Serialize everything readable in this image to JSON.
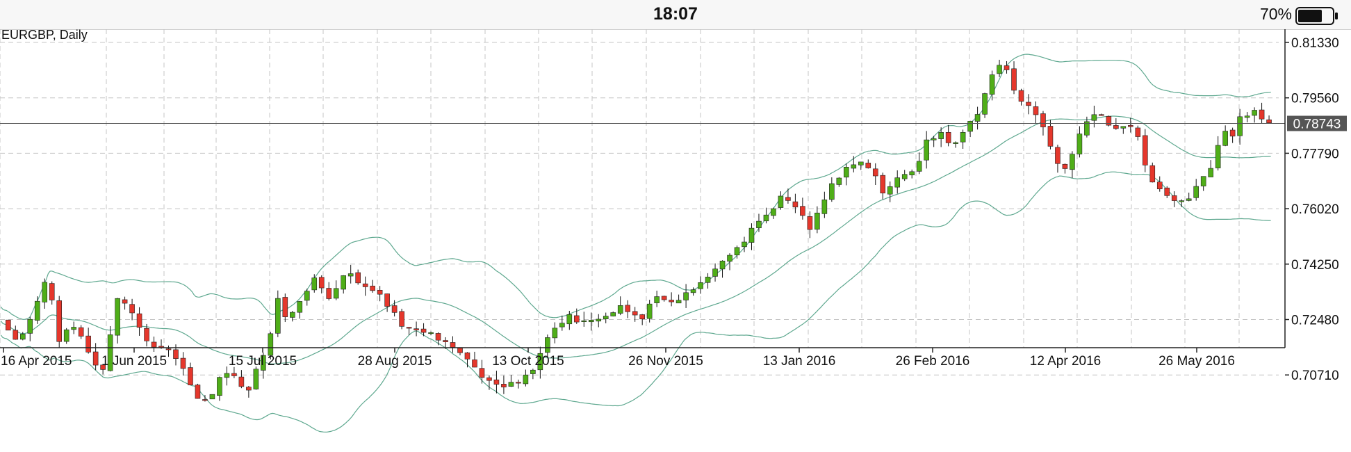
{
  "status_bar": {
    "time": "18:07",
    "battery_percent": "70%",
    "battery_level": 0.7
  },
  "chart_data": {
    "type": "candlestick",
    "title": "EURGBP, Daily",
    "y_ticks": [
      "0.81330",
      "0.79560",
      "0.77790",
      "0.76020",
      "0.74250",
      "0.72480",
      "0.70710"
    ],
    "ylim": [
      0.696,
      0.816
    ],
    "x_ticks": [
      "16 Apr 2015",
      "1 Jun 2015",
      "15 Jul 2015",
      "28 Aug 2015",
      "13 Oct 2015",
      "26 Nov 2015",
      "13 Jan 2016",
      "26 Feb 2016",
      "12 Apr 2016",
      "26 May 2016"
    ],
    "current_price": "0.78743",
    "current_price_value": 0.78743,
    "grid": true,
    "indicators": [
      "Bollinger Bands"
    ],
    "colors": {
      "bull": "#4fae18",
      "bear": "#e5372c",
      "bands": "#5ea88f",
      "grid": "#c4c4c4",
      "price_line": "#555555",
      "price_label_bg": "#555555"
    },
    "close_path": [
      [
        0,
        0.724
      ],
      [
        10,
        0.7165
      ],
      [
        21,
        0.733
      ],
      [
        26,
        0.74
      ],
      [
        31,
        0.718
      ],
      [
        41,
        0.723
      ],
      [
        46,
        0.717
      ],
      [
        51,
        0.71
      ],
      [
        56,
        0.709
      ],
      [
        64,
        0.732
      ],
      [
        73,
        0.726
      ],
      [
        78,
        0.72
      ],
      [
        83,
        0.715
      ],
      [
        93,
        0.716
      ],
      [
        103,
        0.706
      ],
      [
        108,
        0.7
      ],
      [
        115,
        0.699
      ],
      [
        122,
        0.709
      ],
      [
        129,
        0.706
      ],
      [
        135,
        0.7
      ],
      [
        142,
        0.713
      ],
      [
        147,
        0.716
      ],
      [
        151,
        0.733
      ],
      [
        156,
        0.726
      ],
      [
        164,
        0.73
      ],
      [
        172,
        0.739
      ],
      [
        180,
        0.732
      ],
      [
        190,
        0.74
      ],
      [
        197,
        0.736
      ],
      [
        210,
        0.732
      ],
      [
        216,
        0.726
      ],
      [
        222,
        0.722
      ],
      [
        235,
        0.72
      ],
      [
        250,
        0.716
      ],
      [
        257,
        0.711
      ],
      [
        263,
        0.707
      ],
      [
        270,
        0.706
      ],
      [
        275,
        0.703
      ],
      [
        284,
        0.705
      ],
      [
        292,
        0.708
      ],
      [
        297,
        0.715
      ],
      [
        305,
        0.723
      ],
      [
        313,
        0.726
      ],
      [
        321,
        0.723
      ],
      [
        332,
        0.725
      ],
      [
        339,
        0.73
      ],
      [
        344,
        0.727
      ],
      [
        352,
        0.726
      ],
      [
        359,
        0.732
      ],
      [
        372,
        0.731
      ],
      [
        380,
        0.735
      ],
      [
        389,
        0.74
      ],
      [
        397,
        0.743
      ],
      [
        406,
        0.748
      ],
      [
        413,
        0.755
      ],
      [
        421,
        0.758
      ],
      [
        427,
        0.764
      ],
      [
        436,
        0.76
      ],
      [
        440,
        0.757
      ],
      [
        444,
        0.754
      ],
      [
        450,
        0.762
      ],
      [
        459,
        0.77
      ],
      [
        464,
        0.773
      ],
      [
        474,
        0.775
      ],
      [
        480,
        0.77
      ],
      [
        484,
        0.765
      ],
      [
        490,
        0.77
      ],
      [
        501,
        0.772
      ],
      [
        508,
        0.782
      ],
      [
        516,
        0.785
      ],
      [
        521,
        0.78
      ],
      [
        526,
        0.782
      ],
      [
        537,
        0.792
      ],
      [
        546,
        0.805
      ],
      [
        550,
        0.808
      ],
      [
        555,
        0.798
      ],
      [
        562,
        0.794
      ],
      [
        568,
        0.79
      ],
      [
        573,
        0.786
      ],
      [
        579,
        0.775
      ],
      [
        584,
        0.773
      ],
      [
        590,
        0.781
      ],
      [
        596,
        0.787
      ],
      [
        601,
        0.79
      ],
      [
        607,
        0.788
      ],
      [
        613,
        0.785
      ],
      [
        618,
        0.786
      ],
      [
        624,
        0.784
      ],
      [
        630,
        0.77
      ],
      [
        635,
        0.768
      ],
      [
        640,
        0.765
      ],
      [
        646,
        0.761
      ],
      [
        651,
        0.763
      ],
      [
        658,
        0.768
      ],
      [
        664,
        0.773
      ],
      [
        670,
        0.785
      ],
      [
        676,
        0.783
      ],
      [
        681,
        0.79
      ],
      [
        688,
        0.791
      ],
      [
        692,
        0.788
      ],
      [
        697,
        0.787
      ]
    ]
  }
}
